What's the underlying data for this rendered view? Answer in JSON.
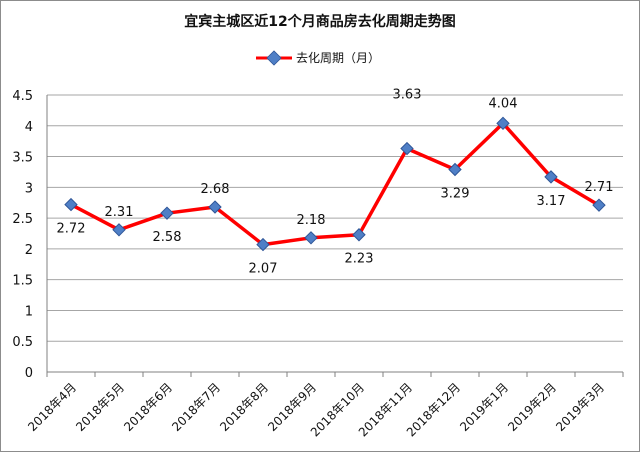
{
  "chart_data": {
    "type": "line",
    "title": "宜宾主城区近12个月商品房去化周期走势图",
    "xlabel": "",
    "ylabel": "",
    "ylim": [
      0,
      4.5
    ],
    "yticks": [
      "0",
      "0.5",
      "1",
      "1.5",
      "2",
      "2.5",
      "3",
      "3.5",
      "4",
      "4.5"
    ],
    "grid": true,
    "legend_position": "top-center",
    "categories": [
      "2018年4月",
      "2018年5月",
      "2018年6月",
      "2018年7月",
      "2018年8月",
      "2018年9月",
      "2018年10月",
      "2018年11月",
      "2018年12月",
      "2019年1月",
      "2019年2月",
      "2019年3月"
    ],
    "series": [
      {
        "name": "去化周期（月）",
        "values": [
          2.72,
          2.31,
          2.58,
          2.68,
          2.07,
          2.18,
          2.23,
          3.63,
          3.29,
          4.04,
          3.17,
          2.71
        ],
        "data_labels": [
          "2.72",
          "2.31",
          "2.58",
          "2.68",
          "2.07",
          "2.18",
          "2.23",
          "3.63",
          "3.29",
          "4.04",
          "3.17",
          "2.71"
        ],
        "line_color": "#ff0000",
        "marker_color": "#4f7fc6"
      }
    ]
  }
}
